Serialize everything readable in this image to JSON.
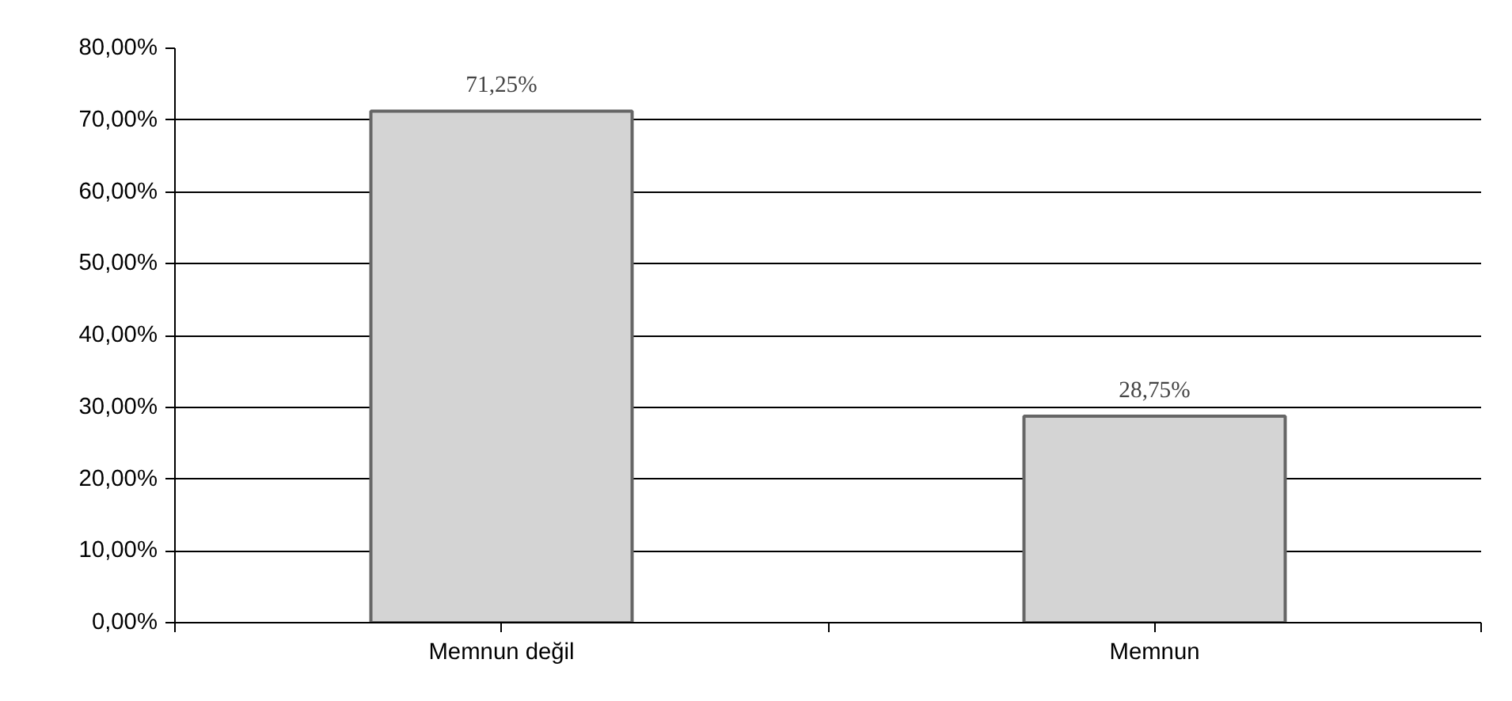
{
  "chart_data": {
    "type": "bar",
    "categories": [
      "Memnun değil",
      "Memnun"
    ],
    "values": [
      71.25,
      28.75
    ],
    "color": "#d4d4d4",
    "value_labels": [
      "71,25%",
      "28,75%"
    ],
    "ylim": [
      0,
      80
    ],
    "yticks": [
      {
        "value": 0,
        "label": "0,00%"
      },
      {
        "value": 10,
        "label": "10,00%"
      },
      {
        "value": 20,
        "label": "20,00%"
      },
      {
        "value": 30,
        "label": "30,00%"
      },
      {
        "value": 40,
        "label": "40,00%"
      },
      {
        "value": 50,
        "label": "50,00%"
      },
      {
        "value": 60,
        "label": "60,00%"
      },
      {
        "value": 70,
        "label": "70,00%"
      },
      {
        "value": 80,
        "label": "80,00%"
      }
    ],
    "grid": "y"
  }
}
